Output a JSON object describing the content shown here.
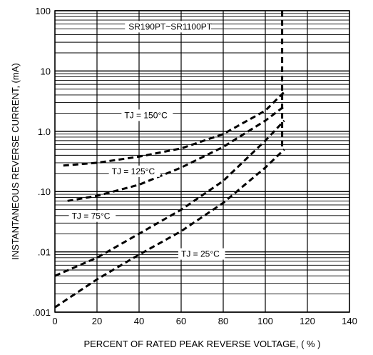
{
  "chart_data": {
    "type": "line",
    "title": "",
    "xlabel": "PERCENT OF RATED PEAK REVERSE VOLTAGE, ( % )",
    "ylabel": "INSTANTANEOUS REVERSE CURRENT, (mA)",
    "xlim": [
      0,
      140
    ],
    "ylim": [
      0.001,
      100
    ],
    "yscale": "log",
    "x_ticks": [
      {
        "value": 0,
        "label": "0"
      },
      {
        "value": 20,
        "label": "20"
      },
      {
        "value": 40,
        "label": "40"
      },
      {
        "value": 60,
        "label": "60"
      },
      {
        "value": 80,
        "label": "80"
      },
      {
        "value": 100,
        "label": "100"
      },
      {
        "value": 120,
        "label": "120"
      },
      {
        "value": 140,
        "label": "140"
      }
    ],
    "y_ticks": [
      {
        "value": 0.001,
        "label": ".001"
      },
      {
        "value": 0.01,
        "label": ".01"
      },
      {
        "value": 0.1,
        "label": ".10"
      },
      {
        "value": 1,
        "label": "1.0"
      },
      {
        "value": 10,
        "label": "10"
      },
      {
        "value": 100,
        "label": "100"
      }
    ],
    "grid": true,
    "line_style": "dashed",
    "series": [
      {
        "name": "TJ = 150°C",
        "label_pos": {
          "x": 33,
          "y": 1.7
        },
        "x": [
          4,
          20,
          40,
          60,
          80,
          100,
          109
        ],
        "y": [
          0.27,
          0.3,
          0.38,
          0.52,
          0.9,
          2.2,
          4.5
        ]
      },
      {
        "name": "TJ = 125°C",
        "label_pos": {
          "x": 27,
          "y": 0.2
        },
        "x": [
          6,
          20,
          40,
          60,
          80,
          100,
          109
        ],
        "y": [
          0.07,
          0.085,
          0.13,
          0.25,
          0.55,
          1.5,
          2.6
        ]
      },
      {
        "name": "TJ = 75°C",
        "label_pos": {
          "x": 8,
          "y": 0.036
        },
        "x": [
          0,
          20,
          40,
          60,
          80,
          100,
          109
        ],
        "y": [
          0.004,
          0.008,
          0.02,
          0.05,
          0.15,
          0.7,
          1.5
        ]
      },
      {
        "name": "TJ = 25°C",
        "label_pos": {
          "x": 60,
          "y": 0.0085
        },
        "x": [
          0,
          20,
          40,
          60,
          80,
          100,
          109
        ],
        "y": [
          0.0012,
          0.0035,
          0.009,
          0.022,
          0.065,
          0.25,
          0.5
        ]
      }
    ],
    "vertical_marker": {
      "x": 108
    },
    "annotation": {
      "text": "SR190PT~SR1100PT",
      "x": 35,
      "y": 50
    }
  }
}
